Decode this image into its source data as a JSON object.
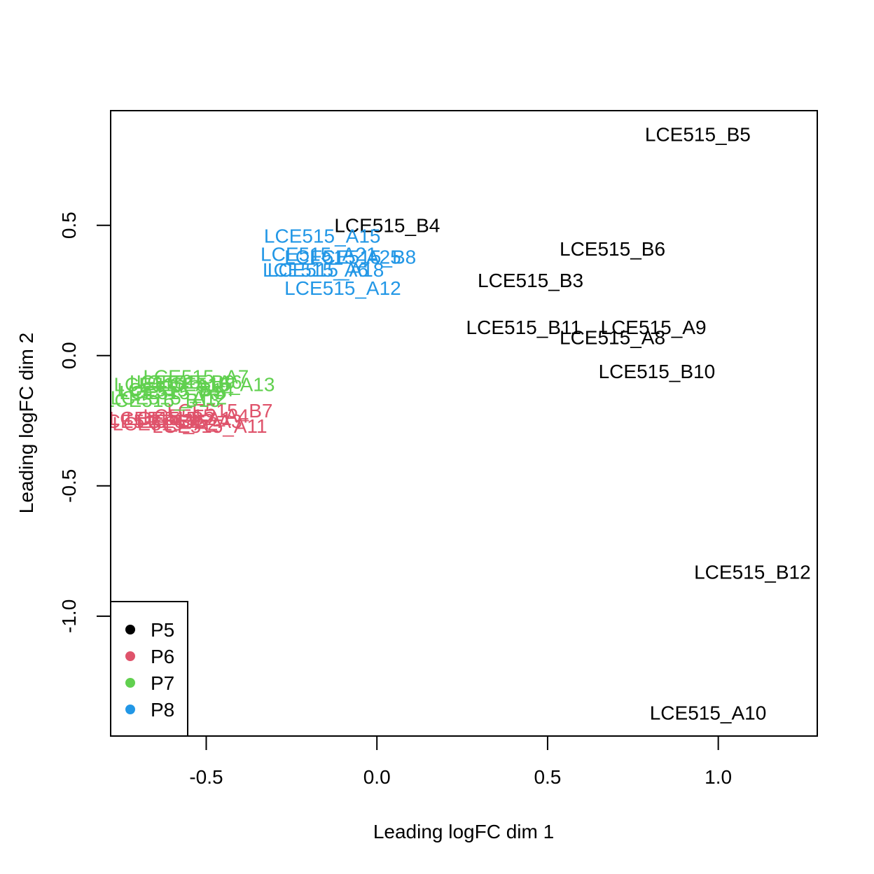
{
  "chart_data": {
    "type": "scatter",
    "title": "",
    "xlabel": "Leading logFC dim 1",
    "ylabel": "Leading logFC dim 2",
    "xlim": [
      -0.78,
      1.29
    ],
    "ylim": [
      -1.46,
      0.94
    ],
    "xticks": [
      -0.5,
      0.0,
      0.5,
      1.0
    ],
    "xtick_labels": [
      "-0.5",
      "0.0",
      "0.5",
      "1.0"
    ],
    "yticks": [
      0.5,
      0.0,
      -0.5,
      -1.0
    ],
    "ytick_labels": [
      "0.5",
      "0.0",
      "-0.5",
      "-1.0"
    ],
    "grid": false,
    "legend": {
      "placement": "bottom-left",
      "entries": [
        {
          "name": "P5",
          "color": "#000000"
        },
        {
          "name": "P6",
          "color": "#DF536B"
        },
        {
          "name": "P7",
          "color": "#61D04F"
        },
        {
          "name": "P8",
          "color": "#2297E6"
        }
      ]
    },
    "series": [
      {
        "name": "P5",
        "color": "#000000",
        "points": [
          {
            "label": "LCE515_B5",
            "x": 0.94,
            "y": 0.85
          },
          {
            "label": "LCE515_B4",
            "x": 0.03,
            "y": 0.5
          },
          {
            "label": "LCE515_B6",
            "x": 0.69,
            "y": 0.41
          },
          {
            "label": "LCE515_B3",
            "x": 0.45,
            "y": 0.29
          },
          {
            "label": "LCE515_B11",
            "x": 0.43,
            "y": 0.11
          },
          {
            "label": "LCE515_A9",
            "x": 0.81,
            "y": 0.11
          },
          {
            "label": "LCE515_A8",
            "x": 0.69,
            "y": 0.07
          },
          {
            "label": "LCE515_B10",
            "x": 0.82,
            "y": -0.06
          },
          {
            "label": "LCE515_B12",
            "x": 1.1,
            "y": -0.83
          },
          {
            "label": "LCE515_A10",
            "x": 0.97,
            "y": -1.37
          }
        ]
      },
      {
        "name": "P6",
        "color": "#DF536B",
        "points": [
          {
            "label": "LCE515_B7",
            "x": -0.46,
            "y": -0.21
          },
          {
            "label": "LCE515_A4",
            "x": -0.53,
            "y": -0.23
          },
          {
            "label": "LCE515_A1",
            "x": -0.58,
            "y": -0.24
          },
          {
            "label": "LCE515_B2",
            "x": -0.63,
            "y": -0.24
          },
          {
            "label": "LCE515_B1",
            "x": -0.67,
            "y": -0.25
          },
          {
            "label": "LCE515_A3",
            "x": -0.55,
            "y": -0.25
          },
          {
            "label": "LCE515_A2",
            "x": -0.62,
            "y": -0.26
          },
          {
            "label": "LCE515_A11",
            "x": -0.49,
            "y": -0.27
          }
        ]
      },
      {
        "name": "P7",
        "color": "#61D04F",
        "points": [
          {
            "label": "LCE515_A7",
            "x": -0.53,
            "y": -0.08
          },
          {
            "label": "LCE515_A6",
            "x": -0.55,
            "y": -0.1
          },
          {
            "label": "LCE515_B9",
            "x": -0.57,
            "y": -0.1
          },
          {
            "label": "LCE515_A16",
            "x": -0.6,
            "y": -0.11
          },
          {
            "label": "LCE515_A13",
            "x": -0.47,
            "y": -0.11
          },
          {
            "label": "LCE515_B14",
            "x": -0.59,
            "y": -0.13
          },
          {
            "label": "LCE515_A5",
            "x": -0.6,
            "y": -0.14
          },
          {
            "label": "LCE515_A12",
            "x": -0.61,
            "y": -0.16
          },
          {
            "label": "LCE515_B13",
            "x": -0.63,
            "y": -0.17
          }
        ]
      },
      {
        "name": "P8",
        "color": "#2297E6",
        "points": [
          {
            "label": "LCE515_A15",
            "x": -0.16,
            "y": 0.46
          },
          {
            "label": "LCE515_A21",
            "x": -0.17,
            "y": 0.39
          },
          {
            "label": "LCE515_B8",
            "x": -0.04,
            "y": 0.38
          },
          {
            "label": "LCE515_A25",
            "x": -0.1,
            "y": 0.38
          },
          {
            "label": "LCE515_A6",
            "x": -0.18,
            "y": 0.33
          },
          {
            "label": "LCE515_A18",
            "x": -0.15,
            "y": 0.33
          },
          {
            "label": "LCE515_A12",
            "x": -0.1,
            "y": 0.26
          }
        ]
      }
    ]
  }
}
